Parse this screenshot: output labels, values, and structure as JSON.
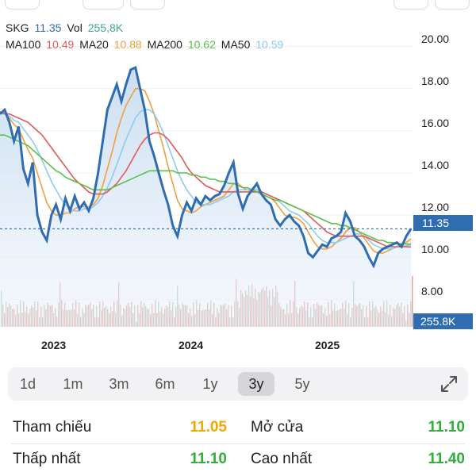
{
  "legend": {
    "symbol": "SKG",
    "price": "11.35",
    "vol_label": "Vol",
    "vol_value": "255,8K",
    "ma": [
      {
        "label": "MA100",
        "value": "10.49",
        "color": "#e05a5a"
      },
      {
        "label": "MA20",
        "value": "10.88",
        "color": "#f0a040"
      },
      {
        "label": "MA200",
        "value": "10.62",
        "color": "#5cc04a"
      },
      {
        "label": "MA50",
        "value": "10.59",
        "color": "#8ecbf0"
      }
    ]
  },
  "colors": {
    "price_line": "#2f6db0",
    "price_text": "#2f6db0",
    "vol_text": "#3aa68f",
    "reference": "#f0a800",
    "up": "#2fae3a",
    "vol_up": "#e89a9a",
    "vol_down": "#9ad0b0"
  },
  "price_tag": "11.35",
  "vol_tag": "255.8K",
  "chart_data": {
    "type": "line",
    "y_ticks": [
      "20.00",
      "18.00",
      "16.00",
      "14.00",
      "12.00",
      "10.00",
      "8.00"
    ],
    "ylim": [
      7.0,
      21.0
    ],
    "x_ticks": [
      "2023",
      "2024",
      "2025"
    ],
    "current_price": 11.35,
    "series": [
      {
        "name": "SKG",
        "color": "#2f6db0",
        "values": [
          16.8,
          17.0,
          16.4,
          15.5,
          16.2,
          14.2,
          13.5,
          14.5,
          12.0,
          11.2,
          10.8,
          12.0,
          12.5,
          11.8,
          12.8,
          12.2,
          12.9,
          12.3,
          12.6,
          12.2,
          12.8,
          14.0,
          15.5,
          17.0,
          17.6,
          18.2,
          17.4,
          18.2,
          18.9,
          19.0,
          18.0,
          17.0,
          15.5,
          14.8,
          14.0,
          13.2,
          12.5,
          11.5,
          11.0,
          12.0,
          12.6,
          12.2,
          12.8,
          12.5,
          12.9,
          12.7,
          12.9,
          13.0,
          13.4,
          14.0,
          14.5,
          13.0,
          12.3,
          12.9,
          13.2,
          13.5,
          13.0,
          12.7,
          12.5,
          11.8,
          11.5,
          11.8,
          12.0,
          11.7,
          11.5,
          11.0,
          10.2,
          10.0,
          10.3,
          10.6,
          10.5,
          10.9,
          11.0,
          11.2,
          12.1,
          11.7,
          11.0,
          10.8,
          10.5,
          10.0,
          9.6,
          10.2,
          10.4,
          10.5,
          10.6,
          10.7,
          10.5,
          11.0,
          11.35
        ]
      },
      {
        "name": "MA20",
        "color": "#f0a040",
        "values": [
          16.9,
          16.8,
          16.6,
          16.3,
          16.1,
          15.6,
          15.1,
          14.7,
          14.0,
          13.3,
          12.6,
          12.2,
          12.0,
          12.0,
          12.1,
          12.1,
          12.3,
          12.4,
          12.4,
          12.4,
          12.5,
          12.8,
          13.4,
          14.2,
          15.0,
          15.9,
          16.6,
          17.2,
          17.6,
          18.0,
          18.0,
          17.9,
          17.4,
          16.8,
          16.0,
          15.2,
          14.3,
          13.5,
          12.7,
          12.3,
          12.2,
          12.1,
          12.2,
          12.4,
          12.5,
          12.6,
          12.7,
          12.8,
          12.9,
          13.2,
          13.5,
          13.5,
          13.3,
          13.2,
          13.1,
          13.1,
          13.0,
          12.9,
          12.8,
          12.6,
          12.3,
          12.0,
          11.9,
          11.9,
          11.8,
          11.6,
          11.2,
          10.8,
          10.5,
          10.4,
          10.4,
          10.5,
          10.7,
          10.9,
          11.2,
          11.4,
          11.4,
          11.2,
          10.9,
          10.6,
          10.3,
          10.2,
          10.2,
          10.3,
          10.4,
          10.5,
          10.6,
          10.7,
          10.88
        ]
      },
      {
        "name": "MA50",
        "color": "#8ecbf0",
        "values": [
          16.8,
          16.8,
          16.7,
          16.5,
          16.4,
          16.1,
          15.8,
          15.5,
          15.1,
          14.6,
          14.1,
          13.6,
          13.2,
          12.8,
          12.5,
          12.3,
          12.2,
          12.2,
          12.3,
          12.3,
          12.4,
          12.6,
          12.9,
          13.3,
          13.8,
          14.4,
          15.0,
          15.6,
          16.1,
          16.6,
          16.9,
          17.0,
          17.0,
          16.8,
          16.4,
          15.9,
          15.3,
          14.7,
          14.1,
          13.6,
          13.2,
          12.9,
          12.6,
          12.5,
          12.5,
          12.5,
          12.6,
          12.7,
          12.8,
          12.9,
          13.1,
          13.2,
          13.2,
          13.2,
          13.2,
          13.2,
          13.1,
          13.0,
          12.9,
          12.8,
          12.6,
          12.4,
          12.2,
          12.1,
          12.0,
          11.8,
          11.6,
          11.3,
          11.0,
          10.8,
          10.7,
          10.7,
          10.7,
          10.8,
          10.9,
          11.0,
          11.1,
          11.1,
          11.0,
          10.8,
          10.6,
          10.5,
          10.4,
          10.4,
          10.4,
          10.5,
          10.5,
          10.55,
          10.59
        ]
      },
      {
        "name": "MA100",
        "color": "#e05a5a",
        "values": [
          16.9,
          16.8,
          16.8,
          16.7,
          16.6,
          16.5,
          16.4,
          16.2,
          16.0,
          15.8,
          15.5,
          15.2,
          14.9,
          14.6,
          14.3,
          14.0,
          13.7,
          13.5,
          13.3,
          13.1,
          13.0,
          13.0,
          13.0,
          13.1,
          13.3,
          13.5,
          13.8,
          14.1,
          14.5,
          14.9,
          15.3,
          15.6,
          15.8,
          15.9,
          15.9,
          15.8,
          15.6,
          15.3,
          15.0,
          14.7,
          14.3,
          14.0,
          13.8,
          13.6,
          13.4,
          13.3,
          13.2,
          13.1,
          13.1,
          13.1,
          13.1,
          13.1,
          13.1,
          13.1,
          13.1,
          13.1,
          13.1,
          13.0,
          12.9,
          12.8,
          12.7,
          12.6,
          12.5,
          12.4,
          12.3,
          12.2,
          12.0,
          11.8,
          11.6,
          11.4,
          11.2,
          11.1,
          11.0,
          11.0,
          11.0,
          11.0,
          11.0,
          11.0,
          11.0,
          10.9,
          10.8,
          10.7,
          10.6,
          10.5,
          10.5,
          10.5,
          10.5,
          10.5,
          10.49
        ]
      },
      {
        "name": "MA200",
        "color": "#5cc04a",
        "values": [
          15.8,
          15.8,
          15.7,
          15.6,
          15.5,
          15.4,
          15.3,
          15.1,
          14.9,
          14.7,
          14.5,
          14.3,
          14.1,
          14.0,
          13.8,
          13.7,
          13.6,
          13.5,
          13.4,
          13.3,
          13.2,
          13.2,
          13.2,
          13.2,
          13.3,
          13.4,
          13.5,
          13.6,
          13.7,
          13.8,
          13.9,
          14.0,
          14.1,
          14.1,
          14.1,
          14.1,
          14.1,
          14.1,
          14.0,
          14.0,
          14.0,
          13.9,
          13.9,
          13.8,
          13.8,
          13.7,
          13.7,
          13.6,
          13.6,
          13.5,
          13.5,
          13.4,
          13.3,
          13.3,
          13.2,
          13.1,
          13.0,
          12.9,
          12.8,
          12.7,
          12.7,
          12.6,
          12.5,
          12.4,
          12.3,
          12.2,
          12.1,
          12.0,
          11.9,
          11.8,
          11.7,
          11.6,
          11.6,
          11.5,
          11.5,
          11.4,
          11.3,
          11.2,
          11.1,
          11.0,
          10.9,
          10.8,
          10.8,
          10.7,
          10.7,
          10.65,
          10.64,
          10.63,
          10.62
        ]
      }
    ]
  },
  "ranges": [
    {
      "label": "1d",
      "active": false
    },
    {
      "label": "1m",
      "active": false
    },
    {
      "label": "3m",
      "active": false
    },
    {
      "label": "6m",
      "active": false
    },
    {
      "label": "1y",
      "active": false
    },
    {
      "label": "3y",
      "active": true
    },
    {
      "label": "5y",
      "active": false
    }
  ],
  "expand_icon": "expand-icon",
  "stats": {
    "reference_label": "Tham chiếu",
    "reference_value": "11.05",
    "open_label": "Mở cửa",
    "open_value": "11.10",
    "low_label": "Thấp nhất",
    "low_value": "11.10",
    "high_label": "Cao nhất",
    "high_value": "11.40"
  }
}
